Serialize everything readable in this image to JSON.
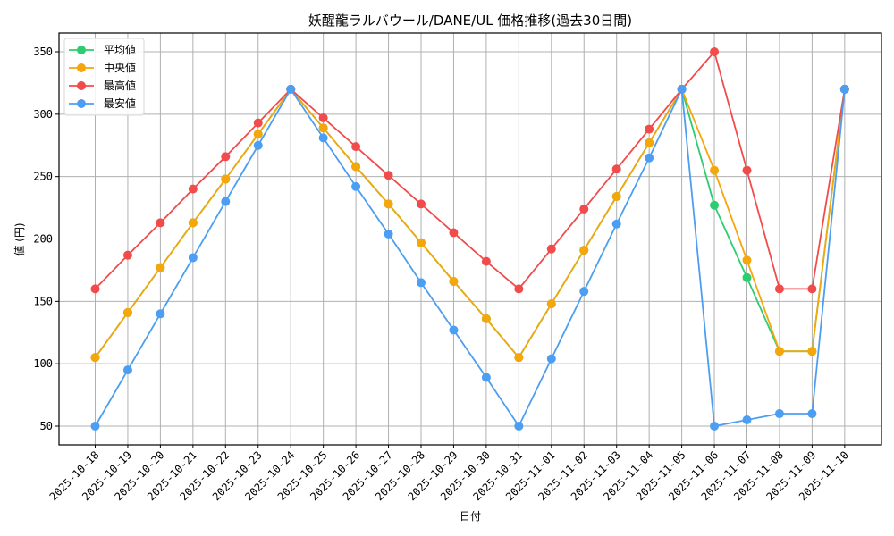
{
  "chart_data": {
    "type": "line",
    "title": "妖醒龍ラルバウール/DANE/UL 価格推移(過去30日間)",
    "xlabel": "日付",
    "ylabel": "値 (円)",
    "ylim": [
      35,
      365
    ],
    "yticks": [
      50,
      100,
      150,
      200,
      250,
      300,
      350
    ],
    "grid": true,
    "legend_position": "upper left",
    "categories": [
      "2025-10-18",
      "2025-10-19",
      "2025-10-20",
      "2025-10-21",
      "2025-10-22",
      "2025-10-23",
      "2025-10-24",
      "2025-10-25",
      "2025-10-26",
      "2025-10-27",
      "2025-10-28",
      "2025-10-29",
      "2025-10-30",
      "2025-10-31",
      "2025-11-01",
      "2025-11-02",
      "2025-11-03",
      "2025-11-04",
      "2025-11-05",
      "2025-11-06",
      "2025-11-07",
      "2025-11-08",
      "2025-11-09",
      "2025-11-10"
    ],
    "series": [
      {
        "name": "平均値",
        "color": "#2ecc71",
        "values": [
          105,
          141,
          177,
          213,
          248,
          284,
          320,
          289,
          258,
          228,
          197,
          166,
          136,
          105,
          148,
          191,
          234,
          277,
          320,
          227,
          169,
          110,
          110,
          320
        ]
      },
      {
        "name": "中央値",
        "color": "#f5a60a",
        "values": [
          105,
          141,
          177,
          213,
          248,
          284,
          320,
          289,
          258,
          228,
          197,
          166,
          136,
          105,
          148,
          191,
          234,
          277,
          320,
          255,
          183,
          110,
          110,
          320
        ]
      },
      {
        "name": "最高値",
        "color": "#f24b4b",
        "values": [
          160,
          187,
          213,
          240,
          266,
          293,
          320,
          297,
          274,
          251,
          228,
          205,
          182,
          160,
          192,
          224,
          256,
          288,
          320,
          350,
          255,
          160,
          160,
          320
        ]
      },
      {
        "name": "最安値",
        "color": "#4b9ef2",
        "values": [
          50,
          95,
          140,
          185,
          230,
          275,
          320,
          281,
          242,
          204,
          165,
          127,
          89,
          50,
          104,
          158,
          212,
          265,
          320,
          50,
          55,
          60,
          60,
          320
        ]
      }
    ]
  }
}
